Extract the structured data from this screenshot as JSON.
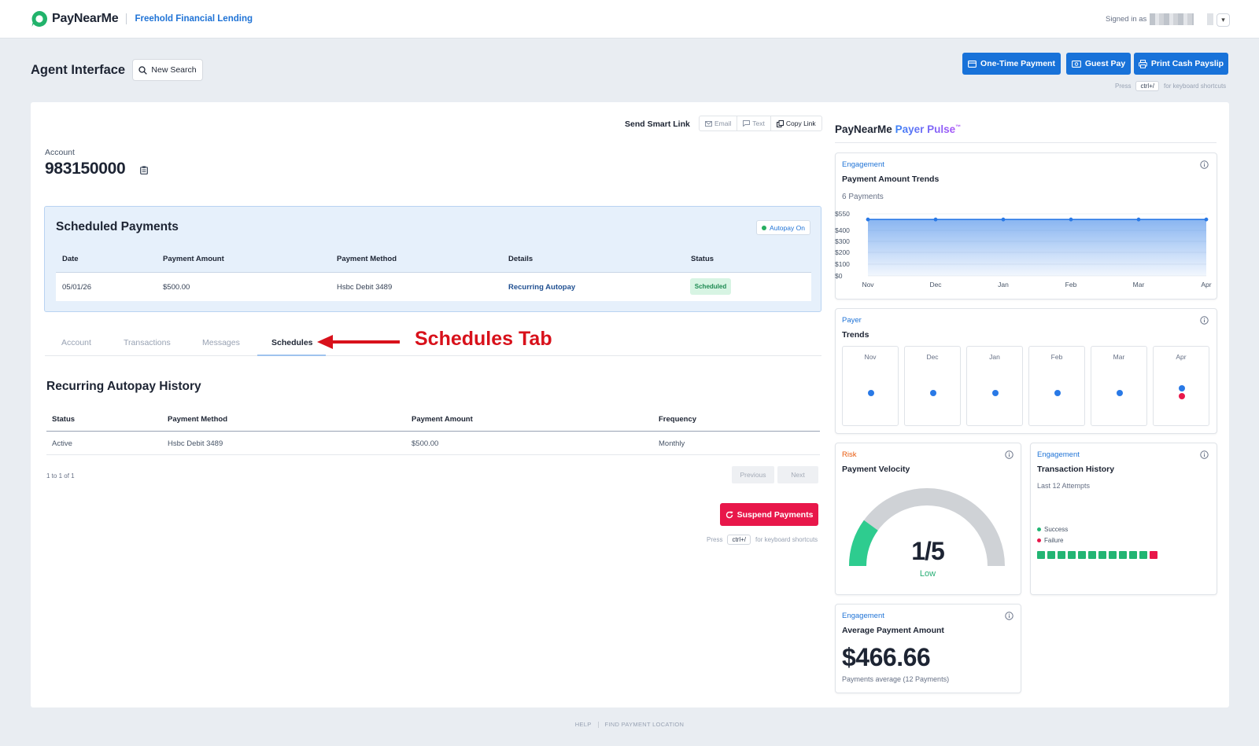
{
  "topnav": {
    "brand": "PayNearMe",
    "org": "Freehold Financial Lending",
    "signed_in": "Signed in as"
  },
  "header": {
    "title": "Agent Interface",
    "new_search": "New Search",
    "buttons": {
      "one_time": "One-Time Payment",
      "guest_pay": "Guest Pay",
      "print_payslip": "Print Cash Payslip"
    },
    "kbd_hint": {
      "press": "Press",
      "key": "ctrl+/",
      "suffix": "for keyboard shortcuts"
    }
  },
  "smart_link": {
    "label": "Send Smart Link",
    "email": "Email",
    "text": "Text",
    "copy": "Copy Link"
  },
  "account": {
    "label": "Account",
    "number": "983150000"
  },
  "scheduled": {
    "title": "Scheduled Payments",
    "autopay": "Autopay On",
    "headers": [
      "Date",
      "Payment Amount",
      "Payment Method",
      "Details",
      "Status"
    ],
    "row": {
      "date": "05/01/26",
      "amount": "$500.00",
      "method": "Hsbc Debit 3489",
      "details": "Recurring Autopay",
      "status": "Scheduled"
    }
  },
  "tabs": [
    "Account",
    "Transactions",
    "Messages",
    "Schedules"
  ],
  "annotation": "Schedules Tab",
  "history": {
    "title": "Recurring Autopay History",
    "headers": [
      "Status",
      "Payment Method",
      "Payment Amount",
      "Frequency"
    ],
    "row": {
      "status": "Active",
      "method": "Hsbc Debit 3489",
      "amount": "$500.00",
      "frequency": "Monthly"
    },
    "pager_info": "1 to 1 of 1",
    "previous": "Previous",
    "next": "Next",
    "suspend": "Suspend Payments"
  },
  "pulse": {
    "brand": "PayNearMe",
    "accent": "Payer Pulse",
    "tm": "™",
    "trends": {
      "category": "Engagement",
      "title": "Payment Amount Trends",
      "subtitle": "6 Payments"
    },
    "payer": {
      "category": "Payer",
      "title": "Trends",
      "months": [
        "Nov",
        "Dec",
        "Jan",
        "Feb",
        "Mar",
        "Apr"
      ]
    },
    "velocity": {
      "category": "Risk",
      "title": "Payment Velocity",
      "value": "1/5",
      "level": "Low",
      "fraction": 0.2
    },
    "txn_history": {
      "category": "Engagement",
      "title": "Transaction History",
      "subtitle": "Last 12 Attempts",
      "success": "Success",
      "failure": "Failure",
      "attempts": [
        "success",
        "success",
        "success",
        "success",
        "success",
        "success",
        "success",
        "success",
        "success",
        "success",
        "success",
        "failure"
      ]
    },
    "average": {
      "category": "Engagement",
      "title": "Average Payment Amount",
      "value": "$466.66",
      "subtitle": "Payments average (12 Payments)"
    }
  },
  "chart_data": {
    "type": "area",
    "categories": [
      "Nov",
      "Dec",
      "Jan",
      "Feb",
      "Mar",
      "Apr"
    ],
    "values": [
      500,
      500,
      500,
      500,
      500,
      500
    ],
    "ytick_labels": [
      "$550",
      "$400",
      "$300",
      "$200",
      "$100",
      "$0"
    ],
    "ylim": [
      0,
      550
    ],
    "color": "#2979e6"
  },
  "footer": {
    "help": "HELP",
    "find": "FIND PAYMENT LOCATION"
  }
}
